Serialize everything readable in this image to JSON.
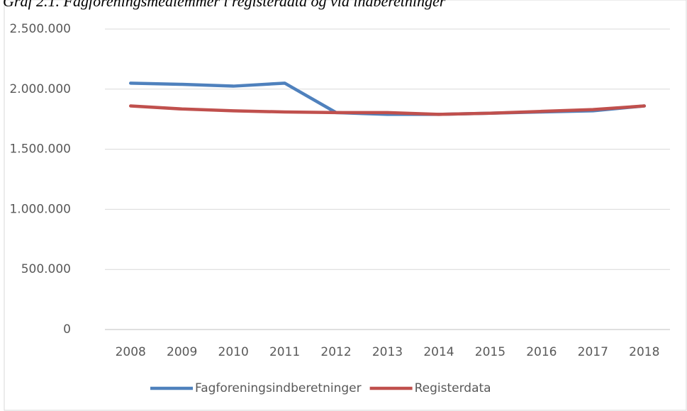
{
  "chart_data": {
    "type": "line",
    "title": "Graf 2.1. Fagforeningsmedlemmer i registerdata og via indberetninger",
    "categories": [
      "2008",
      "2009",
      "2010",
      "2011",
      "2012",
      "2013",
      "2014",
      "2015",
      "2016",
      "2017",
      "2018"
    ],
    "series": [
      {
        "name": "Fagforeningsindberetninger",
        "color": "#4f81bd",
        "values": [
          2050000,
          2040000,
          2025000,
          2050000,
          1805000,
          1790000,
          1790000,
          1800000,
          1810000,
          1820000,
          1860000
        ]
      },
      {
        "name": "Registerdata",
        "color": "#c0504d",
        "values": [
          1860000,
          1835000,
          1820000,
          1810000,
          1805000,
          1805000,
          1790000,
          1800000,
          1815000,
          1830000,
          1860000
        ]
      }
    ],
    "ylim": [
      0,
      2500000
    ],
    "yticks": [
      0,
      {
        "value": 500000,
        "label": "500.000"
      },
      {
        "value": 1000000,
        "label": "1.000.000"
      },
      {
        "value": 1500000,
        "label": "1.500.000"
      },
      {
        "value": 2000000,
        "label": "2.000.000"
      },
      {
        "value": 2500000,
        "label": "2.500.000"
      }
    ],
    "grid": true,
    "legend": "bottom"
  }
}
